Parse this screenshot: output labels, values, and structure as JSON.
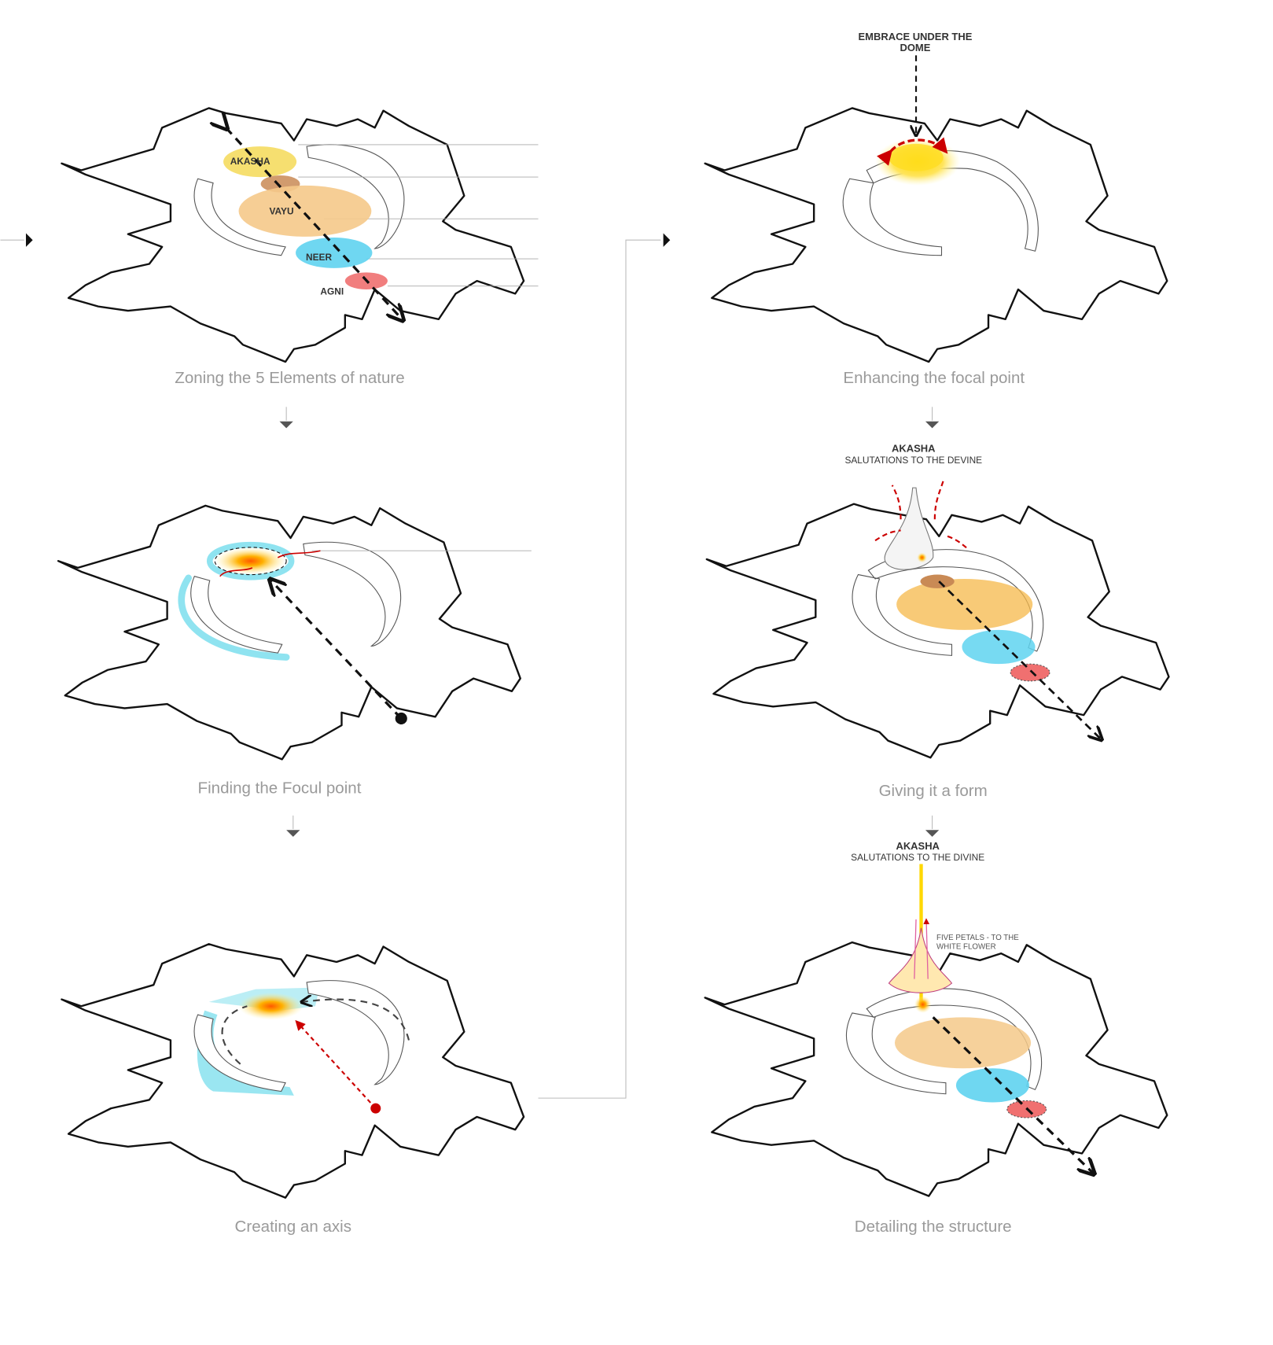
{
  "panels": [
    {
      "caption": "Zoning the 5 Elements of nature",
      "labels": [
        "AKASHA",
        "VAYU",
        "NEER",
        "AGNI"
      ]
    },
    {
      "caption": "Finding the Focul point"
    },
    {
      "caption": "Creating an axis"
    },
    {
      "caption": "Enhancing the focal point",
      "note": [
        "EMBRACE UNDER THE",
        "DOME"
      ]
    },
    {
      "caption": "Giving it a form",
      "heading": "AKASHA",
      "subheading": "SALUTATIONS TO THE DEVINE"
    },
    {
      "caption": "Detailing the structure",
      "heading": "AKASHA",
      "subheading": "SALUTATIONS TO THE DIVINE",
      "note": [
        "FIVE PETALS - TO THE",
        "WHITE FLOWER"
      ]
    }
  ]
}
